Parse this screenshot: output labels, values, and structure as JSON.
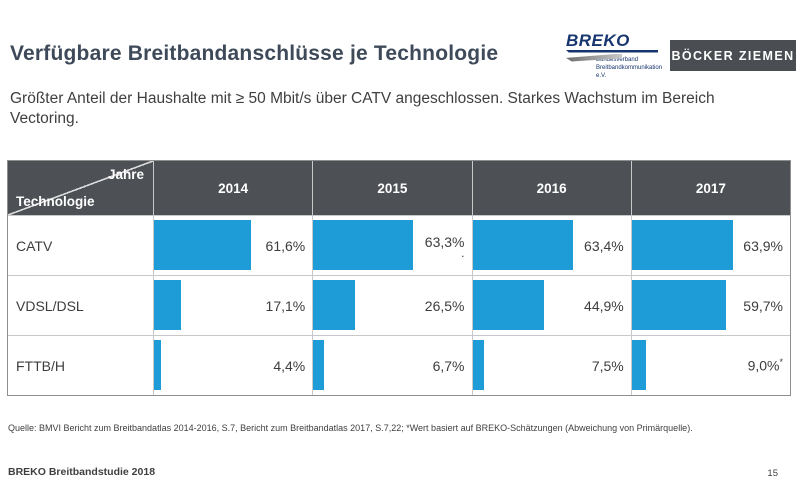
{
  "header": {
    "title": "Verfügbare Breitbandanschlüsse je Technologie",
    "subtitle": "Größter Anteil der Haushalte mit ≥ 50 Mbit/s über CATV angeschlossen. Starkes Wachstum im Bereich Vectoring.",
    "breko_logo": {
      "wordmark": "BREKO",
      "subtext_line1": "Bundesverband",
      "subtext_line2": "Breitbandkommunikation e.V.",
      "brand_color": "#17356E"
    },
    "partner_logo": {
      "label": "BÖCKER ZIEMEN",
      "background": "#4A4E53"
    }
  },
  "chart_data": {
    "type": "bar",
    "title": "Verfügbare Breitbandanschlüsse je Technologie",
    "corner_header": {
      "top": "Jahre",
      "bottom": "Technologie"
    },
    "categories": [
      "2014",
      "2015",
      "2016",
      "2017"
    ],
    "series": [
      {
        "name": "CATV",
        "values": [
          61.6,
          63.3,
          63.4,
          63.9
        ],
        "labels": [
          "61,6%",
          "63,3%",
          "63,4%",
          "63,9%"
        ]
      },
      {
        "name": "VDSL/DSL",
        "values": [
          17.1,
          26.5,
          44.9,
          59.7
        ],
        "labels": [
          "17,1%",
          "26,5%",
          "44,9%",
          "59,7%"
        ]
      },
      {
        "name": "FTTB/H",
        "values": [
          4.4,
          6.7,
          7.5,
          9.0
        ],
        "labels": [
          "4,4%",
          "6,7%",
          "7,5%",
          "9,0%"
        ]
      }
    ],
    "catv_2015_dot_note": ".",
    "fttb_2017_sup_note": "*",
    "bar_color": "#1E9CD8",
    "header_bg": "#4D5156",
    "xlim": [
      0,
      100
    ],
    "grid": "table-borders",
    "legend_position": "none",
    "unit": "percent of households with ≥ 50 Mbit/s"
  },
  "footer": {
    "source": "Quelle: BMVI Bericht zum Breitbandatlas 2014-2016, S.7, Bericht zum Breitbandatlas 2017, S.7,22; *Wert basiert auf BREKO-Schätzungen (Abweichung von Primärquelle).",
    "study": "BREKO Breitbandstudie 2018",
    "page_number": "15"
  }
}
